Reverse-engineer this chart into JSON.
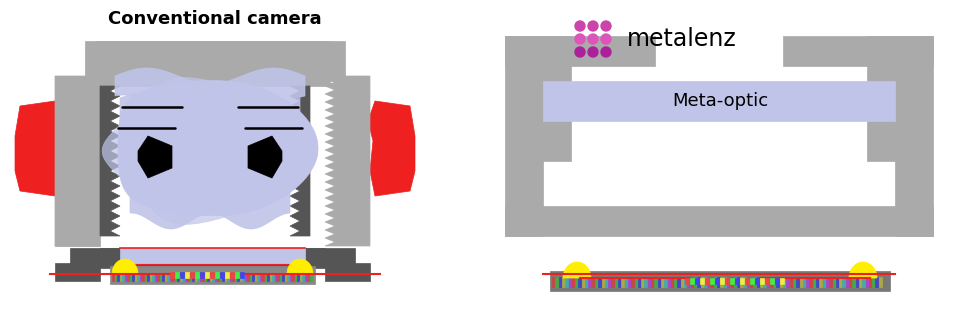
{
  "bg_color": "#ffffff",
  "conv_title": "Conventional camera",
  "meta_title": "metalenz",
  "meta_optic_label": "Meta-optic",
  "colors": {
    "gray_light": "#aaaaaa",
    "gray_mid": "#888888",
    "gray_dark": "#555555",
    "light_blue": "#c0c4e8",
    "red": "#ee2020",
    "black": "#111111",
    "yellow": "#ffee00",
    "sensor_gray": "#888888",
    "sensor_dark": "#666666",
    "white": "#ffffff"
  },
  "dot_colors_row0": "#cc44aa",
  "dot_colors_row1": "#dd55bb",
  "dot_colors_row2": "#aa2299"
}
